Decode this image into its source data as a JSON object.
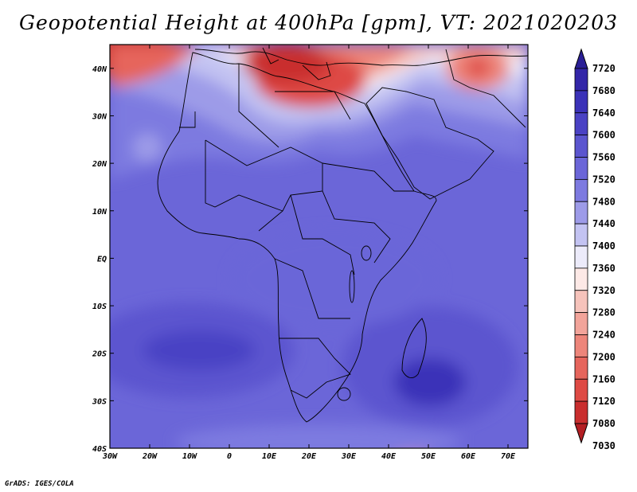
{
  "title": "Geopotential Height at 400hPa [gpm], VT: 2021020203",
  "credit": "GrADS: IGES/COLA",
  "map": {
    "lon_range": [
      -30,
      75
    ],
    "lat_range": [
      -40,
      45
    ],
    "x_ticks": [
      "30W",
      "20W",
      "10W",
      "0",
      "10E",
      "20E",
      "30E",
      "40E",
      "50E",
      "60E",
      "70E"
    ],
    "y_ticks": [
      "40N",
      "30N",
      "20N",
      "10N",
      "EQ",
      "10S",
      "20S",
      "30S",
      "40S"
    ]
  },
  "colorbar": {
    "levels": [
      "7720",
      "7680",
      "7640",
      "7600",
      "7560",
      "7520",
      "7480",
      "7440",
      "7400",
      "7360",
      "7320",
      "7280",
      "7240",
      "7200",
      "7160",
      "7120",
      "7080",
      "7030"
    ],
    "colors": [
      "#2a1f96",
      "#3326a8",
      "#3b32b8",
      "#4a42c4",
      "#5b55cf",
      "#6b66d8",
      "#7d7ae0",
      "#9d9be8",
      "#c3c3f2",
      "#ecebfa",
      "#fde9e6",
      "#f6c3bb",
      "#f2a49a",
      "#ed857a",
      "#e6655c",
      "#de4a44",
      "#c92e2e",
      "#b31e23"
    ]
  }
}
